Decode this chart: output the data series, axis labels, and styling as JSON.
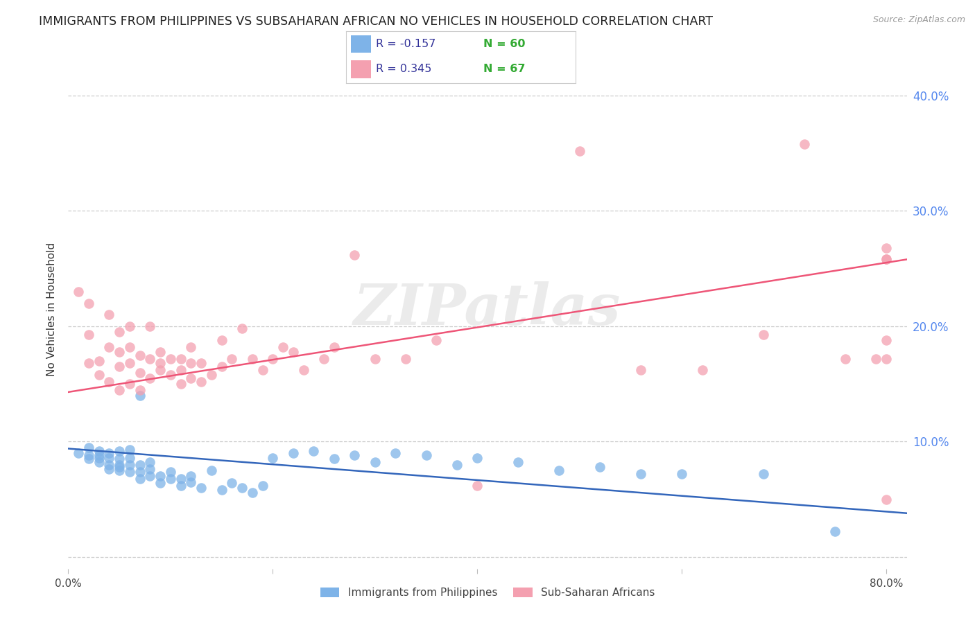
{
  "title": "IMMIGRANTS FROM PHILIPPINES VS SUBSAHARAN AFRICAN NO VEHICLES IN HOUSEHOLD CORRELATION CHART",
  "source": "Source: ZipAtlas.com",
  "ylabel": "No Vehicles in Household",
  "watermark": "ZIPatlas",
  "xlim": [
    0.0,
    0.82
  ],
  "ylim": [
    -0.01,
    0.44
  ],
  "xticks": [
    0.0,
    0.2,
    0.4,
    0.6,
    0.8
  ],
  "yticks": [
    0.0,
    0.1,
    0.2,
    0.3,
    0.4
  ],
  "xtick_labels": [
    "0.0%",
    "",
    "",
    "",
    "80.0%"
  ],
  "ytick_labels": [
    "",
    "10.0%",
    "20.0%",
    "30.0%",
    "40.0%"
  ],
  "legend1_label": "Immigrants from Philippines",
  "legend2_label": "Sub-Saharan Africans",
  "color_blue": "#7EB3E8",
  "color_pink": "#F4A0B0",
  "color_blue_line": "#3366BB",
  "color_pink_line": "#EE5577",
  "color_right_axis": "#5588EE",
  "title_fontsize": 12.5,
  "axis_label_fontsize": 11,
  "tick_fontsize": 11,
  "blue_x": [
    0.01,
    0.02,
    0.02,
    0.02,
    0.03,
    0.03,
    0.03,
    0.03,
    0.04,
    0.04,
    0.04,
    0.04,
    0.05,
    0.05,
    0.05,
    0.05,
    0.05,
    0.06,
    0.06,
    0.06,
    0.06,
    0.07,
    0.07,
    0.07,
    0.07,
    0.08,
    0.08,
    0.08,
    0.09,
    0.09,
    0.1,
    0.1,
    0.11,
    0.11,
    0.12,
    0.12,
    0.13,
    0.14,
    0.15,
    0.16,
    0.17,
    0.18,
    0.19,
    0.2,
    0.22,
    0.24,
    0.26,
    0.28,
    0.3,
    0.32,
    0.35,
    0.38,
    0.4,
    0.44,
    0.48,
    0.52,
    0.56,
    0.6,
    0.68,
    0.75
  ],
  "blue_y": [
    0.09,
    0.095,
    0.085,
    0.088,
    0.082,
    0.088,
    0.092,
    0.086,
    0.08,
    0.086,
    0.076,
    0.09,
    0.078,
    0.085,
    0.092,
    0.075,
    0.08,
    0.074,
    0.08,
    0.086,
    0.093,
    0.068,
    0.074,
    0.08,
    0.14,
    0.07,
    0.076,
    0.082,
    0.064,
    0.07,
    0.068,
    0.074,
    0.062,
    0.068,
    0.065,
    0.07,
    0.06,
    0.075,
    0.058,
    0.064,
    0.06,
    0.056,
    0.062,
    0.086,
    0.09,
    0.092,
    0.085,
    0.088,
    0.082,
    0.09,
    0.088,
    0.08,
    0.086,
    0.082,
    0.075,
    0.078,
    0.072,
    0.072,
    0.072,
    0.022
  ],
  "pink_x": [
    0.01,
    0.02,
    0.02,
    0.02,
    0.03,
    0.03,
    0.04,
    0.04,
    0.04,
    0.05,
    0.05,
    0.05,
    0.05,
    0.06,
    0.06,
    0.06,
    0.06,
    0.07,
    0.07,
    0.07,
    0.08,
    0.08,
    0.08,
    0.09,
    0.09,
    0.09,
    0.1,
    0.1,
    0.11,
    0.11,
    0.11,
    0.12,
    0.12,
    0.12,
    0.13,
    0.13,
    0.14,
    0.15,
    0.15,
    0.16,
    0.17,
    0.18,
    0.19,
    0.2,
    0.21,
    0.22,
    0.23,
    0.25,
    0.26,
    0.28,
    0.3,
    0.33,
    0.36,
    0.4,
    0.5,
    0.56,
    0.62,
    0.68,
    0.72,
    0.76,
    0.79,
    0.8,
    0.8,
    0.8,
    0.8,
    0.8,
    0.8
  ],
  "pink_y": [
    0.23,
    0.168,
    0.193,
    0.22,
    0.158,
    0.17,
    0.152,
    0.182,
    0.21,
    0.145,
    0.165,
    0.178,
    0.195,
    0.15,
    0.168,
    0.182,
    0.2,
    0.16,
    0.175,
    0.145,
    0.155,
    0.172,
    0.2,
    0.162,
    0.168,
    0.178,
    0.158,
    0.172,
    0.15,
    0.162,
    0.172,
    0.155,
    0.168,
    0.182,
    0.152,
    0.168,
    0.158,
    0.188,
    0.165,
    0.172,
    0.198,
    0.172,
    0.162,
    0.172,
    0.182,
    0.178,
    0.162,
    0.172,
    0.182,
    0.262,
    0.172,
    0.172,
    0.188,
    0.062,
    0.352,
    0.162,
    0.162,
    0.193,
    0.358,
    0.172,
    0.172,
    0.188,
    0.268,
    0.258,
    0.258,
    0.172,
    0.05
  ],
  "blue_trendline_x": [
    0.0,
    0.82
  ],
  "blue_trendline_y": [
    0.094,
    0.038
  ],
  "pink_trendline_x": [
    0.0,
    0.82
  ],
  "pink_trendline_y": [
    0.143,
    0.258
  ]
}
